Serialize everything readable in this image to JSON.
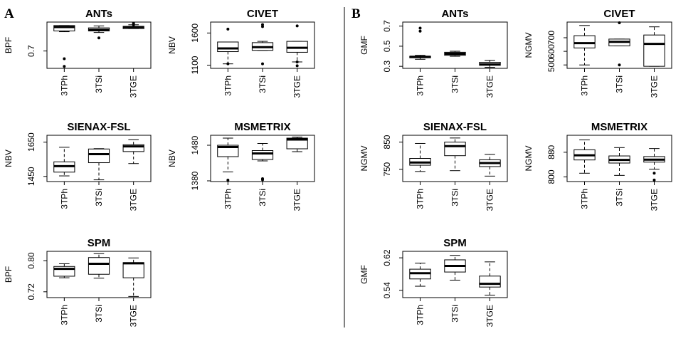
{
  "panels": [
    {
      "letter": "A"
    },
    {
      "letter": "B"
    }
  ],
  "chart_data": [
    {
      "type": "box",
      "panel": "A",
      "title": "ANTs",
      "ylabel": "BPF",
      "categories": [
        "3TPh",
        "3TSi",
        "3TGE"
      ],
      "ylim": [
        0.655,
        0.775
      ],
      "yticks": [
        0.7
      ],
      "boxes": [
        {
          "whislo": 0.75,
          "q1": 0.752,
          "med": 0.762,
          "q3": 0.766,
          "whishi": 0.766,
          "fliers": [
            0.68,
            0.66
          ]
        },
        {
          "whislo": 0.748,
          "q1": 0.752,
          "med": 0.755,
          "q3": 0.76,
          "whishi": 0.765,
          "fliers": [
            0.734
          ]
        },
        {
          "whislo": 0.758,
          "q1": 0.758,
          "med": 0.762,
          "q3": 0.764,
          "whishi": 0.768,
          "fliers": [
            0.768,
            0.772
          ]
        }
      ]
    },
    {
      "type": "box",
      "panel": "A",
      "title": "CIVET",
      "ylabel": "NBV",
      "categories": [
        "3TPh",
        "3TSi",
        "3TGE"
      ],
      "ylim": [
        1050,
        1770
      ],
      "yticks": [
        1100,
        1600
      ],
      "boxes": [
        {
          "whislo": 1120,
          "q1": 1310,
          "med": 1360,
          "q3": 1460,
          "whishi": 1460,
          "fliers": [
            1660,
            1120
          ]
        },
        {
          "whislo": 1330,
          "q1": 1330,
          "med": 1380,
          "q3": 1450,
          "whishi": 1470,
          "fliers": [
            1700,
            1730,
            1120
          ]
        },
        {
          "whislo": 1150,
          "q1": 1300,
          "med": 1370,
          "q3": 1470,
          "whishi": 1470,
          "fliers": [
            1710,
            1150,
            1090
          ]
        }
      ]
    },
    {
      "type": "box",
      "panel": "A",
      "title": "SIENAX-FSL",
      "ylabel": "NBV",
      "categories": [
        "3TPh",
        "3TSi",
        "3TGE"
      ],
      "ylim": [
        1420,
        1690
      ],
      "yticks": [
        1450,
        1650
      ],
      "boxes": [
        {
          "whislo": 1453,
          "q1": 1475,
          "med": 1510,
          "q3": 1535,
          "whishi": 1620,
          "fliers": []
        },
        {
          "whislo": 1430,
          "q1": 1530,
          "med": 1580,
          "q3": 1610,
          "whishi": 1612,
          "fliers": []
        },
        {
          "whislo": 1525,
          "q1": 1595,
          "med": 1625,
          "q3": 1635,
          "whishi": 1665,
          "fliers": []
        }
      ]
    },
    {
      "type": "box",
      "panel": "A",
      "title": "MSMETRIX",
      "ylabel": "NBV",
      "categories": [
        "3TPh",
        "3TSi",
        "3TGE"
      ],
      "ylim": [
        1378,
        1508
      ],
      "yticks": [
        1380,
        1480
      ],
      "boxes": [
        {
          "whislo": 1405,
          "q1": 1448,
          "med": 1475,
          "q3": 1480,
          "whishi": 1500,
          "fliers": [
            1382
          ]
        },
        {
          "whislo": 1436,
          "q1": 1440,
          "med": 1457,
          "q3": 1465,
          "whishi": 1485,
          "fliers": [
            1383,
            1386
          ]
        },
        {
          "whislo": 1462,
          "q1": 1470,
          "med": 1496,
          "q3": 1500,
          "whishi": 1503,
          "fliers": []
        }
      ]
    },
    {
      "type": "box",
      "panel": "A",
      "title": "SPM",
      "ylabel": "BPF",
      "categories": [
        "3TPh",
        "3TSi",
        "3TGE"
      ],
      "ylim": [
        0.705,
        0.824
      ],
      "yticks": [
        0.72,
        0.8
      ],
      "boxes": [
        {
          "whislo": 0.756,
          "q1": 0.76,
          "med": 0.779,
          "q3": 0.785,
          "whishi": 0.792,
          "fliers": []
        },
        {
          "whislo": 0.755,
          "q1": 0.765,
          "med": 0.792,
          "q3": 0.808,
          "whishi": 0.818,
          "fliers": []
        },
        {
          "whislo": 0.708,
          "q1": 0.756,
          "med": 0.793,
          "q3": 0.795,
          "whishi": 0.807,
          "fliers": []
        }
      ]
    },
    {
      "type": "box",
      "panel": "B",
      "title": "ANTs",
      "ylabel": "GMF",
      "categories": [
        "3TPh",
        "3TSi",
        "3TGE"
      ],
      "ylim": [
        0.28,
        0.74
      ],
      "yticks": [
        0.3,
        0.5,
        0.7
      ],
      "boxes": [
        {
          "whislo": 0.37,
          "q1": 0.385,
          "med": 0.395,
          "q3": 0.4,
          "whishi": 0.41,
          "fliers": [
            0.65,
            0.68
          ]
        },
        {
          "whislo": 0.4,
          "q1": 0.41,
          "med": 0.425,
          "q3": 0.44,
          "whishi": 0.45,
          "fliers": []
        },
        {
          "whislo": 0.29,
          "q1": 0.31,
          "med": 0.32,
          "q3": 0.34,
          "whishi": 0.36,
          "fliers": []
        }
      ]
    },
    {
      "type": "box",
      "panel": "B",
      "title": "CIVET",
      "ylabel": "NGMV",
      "categories": [
        "3TPh",
        "3TSi",
        "3TGE"
      ],
      "ylim": [
        475,
        815
      ],
      "yticks": [
        500,
        600,
        700
      ],
      "boxes": [
        {
          "whislo": 500,
          "q1": 625,
          "med": 660,
          "q3": 715,
          "whishi": 790,
          "fliers": []
        },
        {
          "whislo": 640,
          "q1": 640,
          "med": 670,
          "q3": 690,
          "whishi": 690,
          "fliers": [
            810,
            500
          ]
        },
        {
          "whislo": 490,
          "q1": 490,
          "med": 655,
          "q3": 720,
          "whishi": 780,
          "fliers": []
        }
      ]
    },
    {
      "type": "box",
      "panel": "B",
      "title": "SIENAX-FSL",
      "ylabel": "NGMV",
      "categories": [
        "3TPh",
        "3TSi",
        "3TGE"
      ],
      "ylim": [
        705,
        875
      ],
      "yticks": [
        750,
        850
      ],
      "boxes": [
        {
          "whislo": 742,
          "q1": 765,
          "med": 775,
          "q3": 790,
          "whishi": 845,
          "fliers": []
        },
        {
          "whislo": 745,
          "q1": 800,
          "med": 835,
          "q3": 850,
          "whishi": 865,
          "fliers": []
        },
        {
          "whislo": 725,
          "q1": 760,
          "med": 773,
          "q3": 785,
          "whishi": 805,
          "fliers": []
        }
      ]
    },
    {
      "type": "box",
      "panel": "B",
      "title": "MSMETRIX",
      "ylabel": "NGMV",
      "categories": [
        "3TPh",
        "3TSi",
        "3TGE"
      ],
      "ylim": [
        785,
        935
      ],
      "yticks": [
        800,
        880
      ],
      "boxes": [
        {
          "whislo": 812,
          "q1": 855,
          "med": 870,
          "q3": 888,
          "whishi": 920,
          "fliers": []
        },
        {
          "whislo": 805,
          "q1": 845,
          "med": 855,
          "q3": 868,
          "whishi": 895,
          "fliers": []
        },
        {
          "whislo": 825,
          "q1": 848,
          "med": 856,
          "q3": 866,
          "whishi": 892,
          "fliers": [
            812,
            790
          ]
        }
      ]
    },
    {
      "type": "box",
      "panel": "B",
      "title": "SPM",
      "ylabel": "GMF",
      "categories": [
        "3TPh",
        "3TSi",
        "3TGE"
      ],
      "ylim": [
        0.522,
        0.636
      ],
      "yticks": [
        0.54,
        0.62
      ],
      "boxes": [
        {
          "whislo": 0.55,
          "q1": 0.568,
          "med": 0.582,
          "q3": 0.592,
          "whishi": 0.607,
          "fliers": []
        },
        {
          "whislo": 0.565,
          "q1": 0.585,
          "med": 0.6,
          "q3": 0.615,
          "whishi": 0.626,
          "fliers": []
        },
        {
          "whislo": 0.528,
          "q1": 0.548,
          "med": 0.556,
          "q3": 0.575,
          "whishi": 0.61,
          "fliers": []
        }
      ]
    }
  ]
}
